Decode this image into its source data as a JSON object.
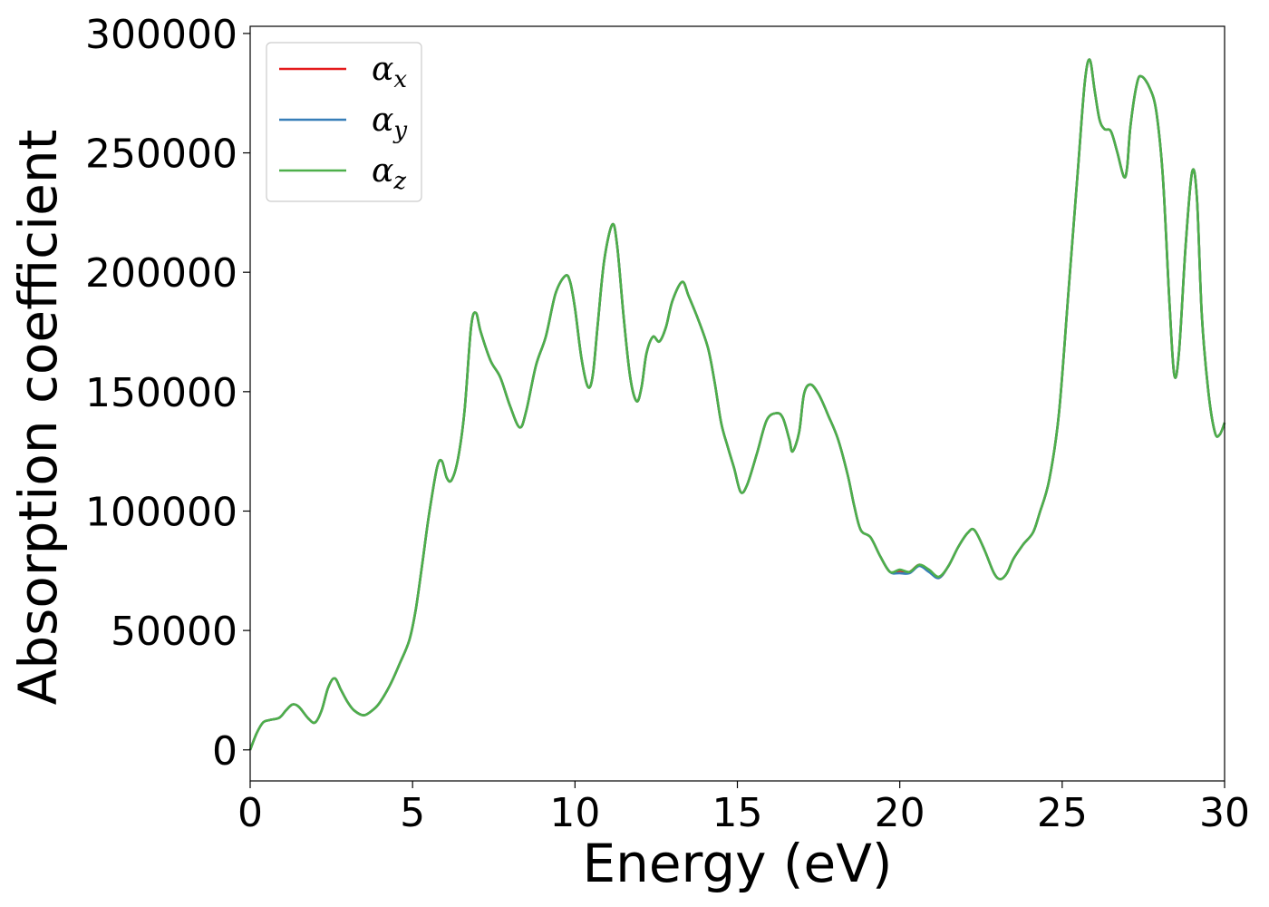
{
  "chart_data": {
    "type": "line",
    "title": "",
    "xlabel": "Energy (eV)",
    "ylabel": "Absorption coefficient",
    "xlim": [
      0,
      30
    ],
    "ylim": [
      -13000,
      303000
    ],
    "xticks": [
      0,
      5,
      10,
      15,
      20,
      25,
      30
    ],
    "yticks": [
      0,
      50000,
      100000,
      150000,
      200000,
      250000,
      300000
    ],
    "grid": false,
    "legend_position": "top-left",
    "series": [
      {
        "name": "α_x",
        "legend_base": "α",
        "legend_sub": "x",
        "color": "#e41a1c",
        "x": [
          0,
          0.2,
          0.4,
          0.6,
          0.9,
          1.1,
          1.3,
          1.5,
          1.8,
          2.0,
          2.2,
          2.4,
          2.6,
          2.8,
          3.0,
          3.2,
          3.5,
          3.8,
          4.0,
          4.3,
          4.6,
          4.9,
          5.1,
          5.3,
          5.5,
          5.75,
          5.9,
          6.05,
          6.2,
          6.4,
          6.6,
          6.8,
          6.95,
          7.1,
          7.4,
          7.7,
          8.0,
          8.3,
          8.5,
          8.8,
          9.1,
          9.4,
          9.7,
          9.85,
          10.0,
          10.2,
          10.4,
          10.55,
          10.7,
          10.9,
          11.15,
          11.3,
          11.5,
          11.7,
          11.9,
          12.05,
          12.2,
          12.4,
          12.6,
          12.8,
          13.0,
          13.3,
          13.5,
          13.8,
          14.1,
          14.3,
          14.5,
          14.7,
          14.9,
          15.1,
          15.3,
          15.6,
          15.9,
          16.2,
          16.4,
          16.6,
          16.7,
          16.9,
          17.05,
          17.25,
          17.5,
          17.8,
          18.1,
          18.4,
          18.6,
          18.8,
          19.1,
          19.4,
          19.7,
          20.0,
          20.3,
          20.6,
          20.9,
          21.2,
          21.5,
          21.8,
          22.1,
          22.3,
          22.6,
          22.9,
          23.1,
          23.3,
          23.5,
          23.8,
          24.1,
          24.3,
          24.6,
          24.9,
          25.2,
          25.5,
          25.7,
          25.85,
          26.0,
          26.15,
          26.3,
          26.5,
          26.7,
          26.9,
          27.0,
          27.1,
          27.3,
          27.45,
          27.7,
          27.9,
          28.1,
          28.3,
          28.45,
          28.6,
          28.8,
          29.0,
          29.15,
          29.3,
          29.5,
          29.7,
          29.85,
          30.0
        ],
        "y": [
          0,
          7000,
          11500,
          12500,
          13500,
          16500,
          19000,
          18000,
          13000,
          11500,
          16500,
          26000,
          30000,
          25000,
          20000,
          16500,
          14500,
          17000,
          20000,
          27000,
          36000,
          46000,
          59000,
          78000,
          98000,
          118000,
          121000,
          114000,
          113000,
          122000,
          142000,
          177000,
          183000,
          175000,
          163000,
          156000,
          144000,
          135000,
          142000,
          161000,
          173000,
          191000,
          198500,
          196000,
          185000,
          164000,
          152000,
          157000,
          178000,
          205000,
          220000,
          211000,
          181000,
          156000,
          146000,
          152000,
          166000,
          173000,
          171000,
          177000,
          188000,
          196000,
          190000,
          180000,
          168000,
          154000,
          137000,
          127000,
          118000,
          108000,
          111000,
          124000,
          138000,
          141000,
          139000,
          130000,
          125000,
          133000,
          149000,
          153000,
          149000,
          140000,
          130000,
          115000,
          102000,
          92000,
          89000,
          81000,
          74500,
          75000,
          74500,
          77500,
          75000,
          72000,
          77000,
          85000,
          91000,
          92000,
          84000,
          74000,
          71500,
          74000,
          80000,
          86000,
          91000,
          99000,
          113000,
          141000,
          193000,
          246000,
          280000,
          289000,
          276000,
          264000,
          260000,
          259000,
          250000,
          240000,
          244000,
          261000,
          279000,
          282000,
          277000,
          267000,
          240000,
          188000,
          157000,
          167000,
          211000,
          242000,
          231000,
          182000,
          150000,
          133000,
          132000,
          137000
        ]
      },
      {
        "name": "α_y",
        "legend_base": "α",
        "legend_sub": "y",
        "color": "#377eb8",
        "x": [
          0,
          0.2,
          0.4,
          0.6,
          0.9,
          1.1,
          1.3,
          1.5,
          1.8,
          2.0,
          2.2,
          2.4,
          2.6,
          2.8,
          3.0,
          3.2,
          3.5,
          3.8,
          4.0,
          4.3,
          4.6,
          4.9,
          5.1,
          5.3,
          5.5,
          5.75,
          5.9,
          6.05,
          6.2,
          6.4,
          6.6,
          6.8,
          6.95,
          7.1,
          7.4,
          7.7,
          8.0,
          8.3,
          8.5,
          8.8,
          9.1,
          9.4,
          9.7,
          9.85,
          10.0,
          10.2,
          10.4,
          10.55,
          10.7,
          10.9,
          11.15,
          11.3,
          11.5,
          11.7,
          11.9,
          12.05,
          12.2,
          12.4,
          12.6,
          12.8,
          13.0,
          13.3,
          13.5,
          13.8,
          14.1,
          14.3,
          14.5,
          14.7,
          14.9,
          15.1,
          15.3,
          15.6,
          15.9,
          16.2,
          16.4,
          16.6,
          16.7,
          16.9,
          17.05,
          17.25,
          17.5,
          17.8,
          18.1,
          18.4,
          18.6,
          18.8,
          19.1,
          19.4,
          19.7,
          20.0,
          20.3,
          20.6,
          20.9,
          21.2,
          21.5,
          21.8,
          22.1,
          22.3,
          22.6,
          22.9,
          23.1,
          23.3,
          23.5,
          23.8,
          24.1,
          24.3,
          24.6,
          24.9,
          25.2,
          25.5,
          25.7,
          25.85,
          26.0,
          26.15,
          26.3,
          26.5,
          26.7,
          26.9,
          27.0,
          27.1,
          27.3,
          27.45,
          27.7,
          27.9,
          28.1,
          28.3,
          28.45,
          28.6,
          28.8,
          29.0,
          29.15,
          29.3,
          29.5,
          29.7,
          29.85,
          30.0
        ],
        "y": [
          0,
          7000,
          11500,
          12500,
          13500,
          16500,
          19000,
          18000,
          13000,
          11500,
          16500,
          26000,
          30000,
          25000,
          20000,
          16500,
          14500,
          17000,
          20000,
          27000,
          36000,
          46000,
          59000,
          78000,
          98000,
          118000,
          121000,
          114000,
          113000,
          122000,
          142000,
          177000,
          183000,
          175000,
          163000,
          156000,
          144000,
          135000,
          142000,
          161000,
          173000,
          191000,
          198500,
          196000,
          185000,
          164000,
          152000,
          157000,
          178000,
          205000,
          220000,
          211000,
          181000,
          156000,
          146000,
          152000,
          166000,
          173000,
          171000,
          177000,
          188000,
          196000,
          190000,
          180000,
          168000,
          154000,
          137000,
          127000,
          118000,
          108000,
          111000,
          124000,
          138000,
          141000,
          139000,
          130000,
          125000,
          133000,
          149000,
          153000,
          149000,
          140000,
          130000,
          115000,
          102000,
          92000,
          89000,
          81000,
          74500,
          74000,
          74000,
          77000,
          74500,
          72000,
          77000,
          85000,
          91000,
          92000,
          84000,
          74000,
          71500,
          74000,
          80000,
          86000,
          91000,
          99000,
          113000,
          141000,
          193000,
          246000,
          280000,
          289000,
          276000,
          264000,
          260000,
          259000,
          250000,
          240000,
          244000,
          261000,
          279000,
          282000,
          277000,
          267000,
          240000,
          188000,
          157000,
          167000,
          211000,
          242000,
          231000,
          182000,
          150000,
          133000,
          132000,
          137000
        ]
      },
      {
        "name": "α_z",
        "legend_base": "α",
        "legend_sub": "z",
        "color": "#4daf4a",
        "x": [
          0,
          0.2,
          0.4,
          0.6,
          0.9,
          1.1,
          1.3,
          1.5,
          1.8,
          2.0,
          2.2,
          2.4,
          2.6,
          2.8,
          3.0,
          3.2,
          3.5,
          3.8,
          4.0,
          4.3,
          4.6,
          4.9,
          5.1,
          5.3,
          5.5,
          5.75,
          5.9,
          6.05,
          6.2,
          6.4,
          6.6,
          6.8,
          6.95,
          7.1,
          7.4,
          7.7,
          8.0,
          8.3,
          8.5,
          8.8,
          9.1,
          9.4,
          9.7,
          9.85,
          10.0,
          10.2,
          10.4,
          10.55,
          10.7,
          10.9,
          11.15,
          11.3,
          11.5,
          11.7,
          11.9,
          12.05,
          12.2,
          12.4,
          12.6,
          12.8,
          13.0,
          13.3,
          13.5,
          13.8,
          14.1,
          14.3,
          14.5,
          14.7,
          14.9,
          15.1,
          15.3,
          15.6,
          15.9,
          16.2,
          16.4,
          16.6,
          16.7,
          16.9,
          17.05,
          17.25,
          17.5,
          17.8,
          18.1,
          18.4,
          18.6,
          18.8,
          19.1,
          19.4,
          19.7,
          20.0,
          20.3,
          20.6,
          20.9,
          21.2,
          21.5,
          21.8,
          22.1,
          22.3,
          22.6,
          22.9,
          23.1,
          23.3,
          23.5,
          23.8,
          24.1,
          24.3,
          24.6,
          24.9,
          25.2,
          25.5,
          25.7,
          25.85,
          26.0,
          26.15,
          26.3,
          26.5,
          26.7,
          26.9,
          27.0,
          27.1,
          27.3,
          27.45,
          27.7,
          27.9,
          28.1,
          28.3,
          28.45,
          28.6,
          28.8,
          29.0,
          29.15,
          29.3,
          29.5,
          29.7,
          29.85,
          30.0
        ],
        "y": [
          0,
          7000,
          11500,
          12500,
          13500,
          16500,
          19000,
          18000,
          13000,
          11500,
          16500,
          26000,
          30000,
          25000,
          20000,
          16500,
          14500,
          17000,
          20000,
          27000,
          36000,
          46000,
          59000,
          78000,
          98000,
          118000,
          121000,
          114000,
          113000,
          122000,
          142000,
          177000,
          183000,
          175000,
          163000,
          156000,
          144000,
          135000,
          142000,
          161000,
          173000,
          191000,
          198500,
          196000,
          185000,
          164000,
          152000,
          157000,
          178000,
          205000,
          220000,
          211000,
          181000,
          156000,
          146000,
          152000,
          166000,
          173000,
          171000,
          177000,
          188000,
          196000,
          190000,
          180000,
          168000,
          154000,
          137000,
          127000,
          118000,
          108000,
          111000,
          124000,
          138000,
          141000,
          139000,
          130000,
          125000,
          133000,
          149000,
          153000,
          149000,
          140000,
          130000,
          115000,
          102000,
          92000,
          89000,
          81000,
          74500,
          75500,
          74500,
          77500,
          75500,
          72500,
          77000,
          85000,
          91000,
          92000,
          84000,
          74000,
          71500,
          74000,
          80000,
          86000,
          91000,
          99000,
          113000,
          141000,
          193000,
          246000,
          280000,
          289000,
          276000,
          264000,
          260000,
          259000,
          250000,
          240000,
          244000,
          261000,
          279000,
          282000,
          277000,
          267000,
          240000,
          188000,
          157000,
          167000,
          211000,
          242000,
          231000,
          182000,
          150000,
          133000,
          132000,
          137000
        ]
      }
    ]
  }
}
